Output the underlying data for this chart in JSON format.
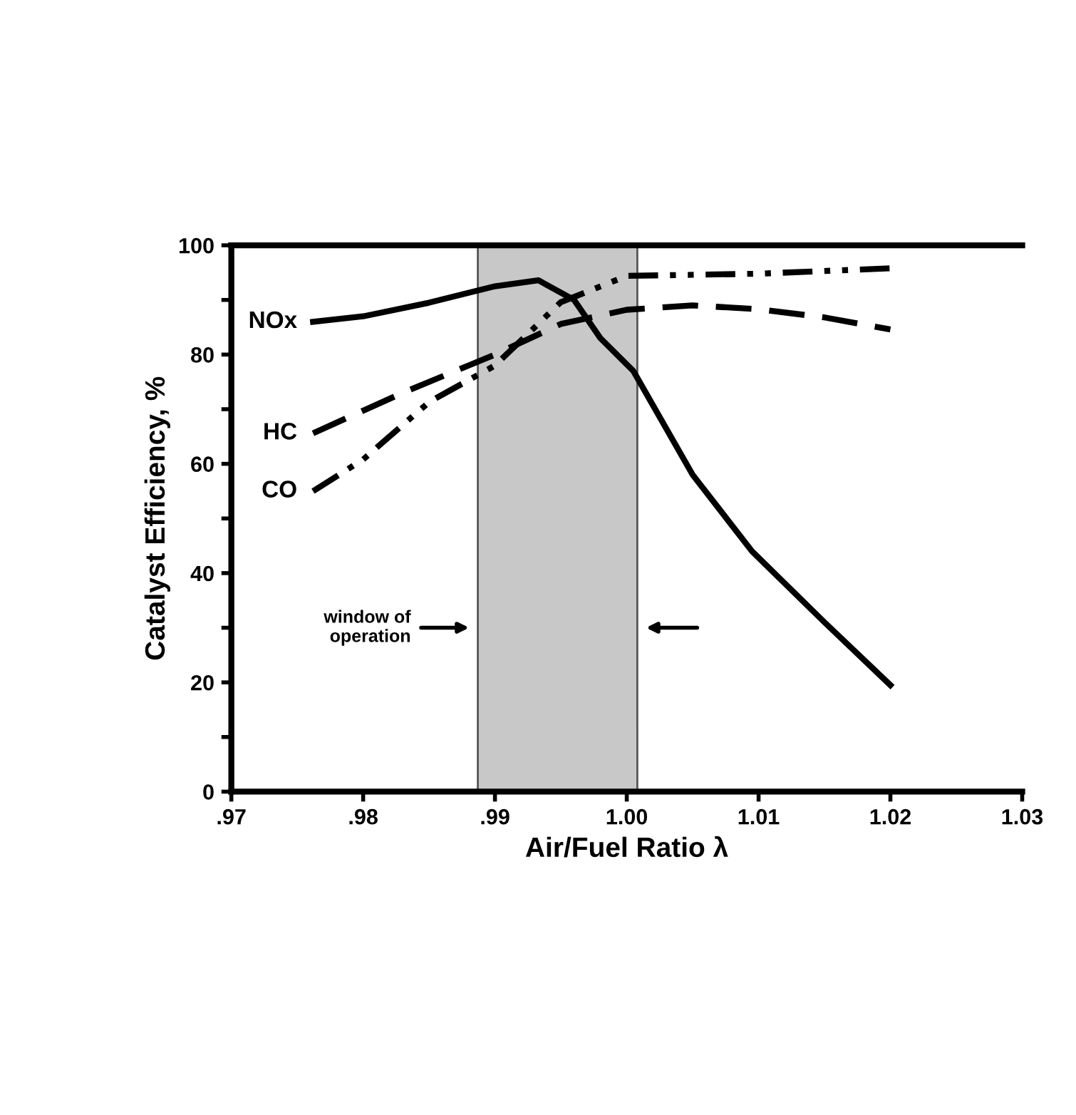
{
  "chart_data": {
    "type": "line",
    "xlabel": "Air/Fuel Ratio λ",
    "ylabel": "Catalyst Efficiency, %",
    "xlim": [
      0.97,
      1.03
    ],
    "ylim": [
      0,
      100
    ],
    "xticks": [
      {
        "value": 0.97,
        "label": ".97"
      },
      {
        "value": 0.98,
        "label": ".98"
      },
      {
        "value": 0.99,
        "label": ".99"
      },
      {
        "value": 1.0,
        "label": "1.00"
      },
      {
        "value": 1.01,
        "label": "1.01"
      },
      {
        "value": 1.02,
        "label": "1.02"
      },
      {
        "value": 1.03,
        "label": "1.03"
      }
    ],
    "yticks": [
      0,
      {
        "value": 10,
        "label": null
      },
      20,
      {
        "value": 30,
        "label": null
      },
      40,
      {
        "value": 50,
        "label": null
      },
      60,
      {
        "value": 70,
        "label": null
      },
      80,
      {
        "value": 90,
        "label": null
      },
      100
    ],
    "grid": false,
    "marker": "none",
    "bands": [
      {
        "axis": "x",
        "from": 0.9887,
        "to": 1.0008,
        "color": "#c8c8c8"
      }
    ],
    "annotations": [
      "window of operation"
    ],
    "series": [
      {
        "name": "NOx",
        "color": "#000000",
        "line_style": "solid",
        "x": [
          0.9762,
          0.98,
          0.985,
          0.99,
          0.9933,
          0.996,
          0.998,
          1.0005,
          1.005,
          1.0095,
          1.015,
          1.02
        ],
        "values": [
          86,
          87,
          89.5,
          92.5,
          93.6,
          90,
          83,
          77,
          58,
          44,
          31,
          19.5
        ]
      },
      {
        "name": "HC",
        "color": "#000000",
        "line_style": "dashed",
        "x": [
          0.9762,
          0.983,
          0.99,
          0.995,
          1.0,
          1.005,
          1.01,
          1.015,
          1.02
        ],
        "values": [
          65.6,
          73,
          80,
          85.6,
          88.2,
          89,
          88.3,
          86.8,
          84.6
        ]
      },
      {
        "name": "CO",
        "color": "#000000",
        "line_style": "dashdot",
        "x": [
          0.9762,
          0.98,
          0.985,
          0.99,
          0.995,
          1.0,
          1.01,
          1.02
        ],
        "values": [
          55,
          60.8,
          71.3,
          78,
          89.6,
          94.4,
          94.8,
          95.8
        ]
      }
    ]
  }
}
